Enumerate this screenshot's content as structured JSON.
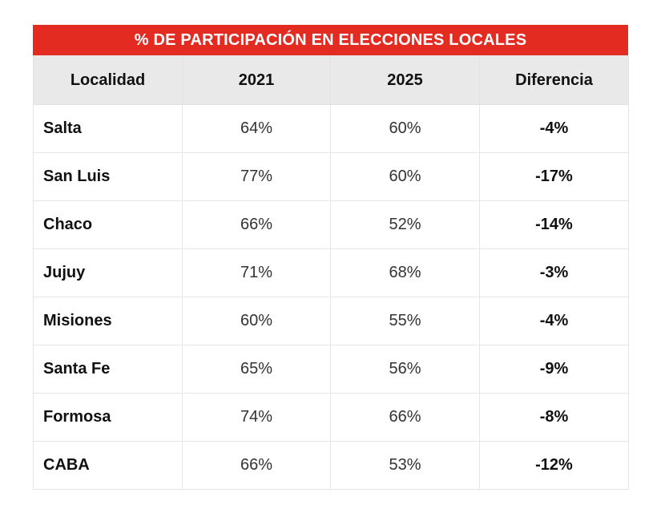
{
  "title": "% DE PARTICIPACIÓN EN ELECCIONES LOCALES",
  "columns": [
    "Localidad",
    "2021",
    "2025",
    "Diferencia"
  ],
  "rows": [
    {
      "localidad": "Salta",
      "y2021": "64%",
      "y2025": "60%",
      "diferencia": "-4%"
    },
    {
      "localidad": "San Luis",
      "y2021": "77%",
      "y2025": "60%",
      "diferencia": "-17%"
    },
    {
      "localidad": "Chaco",
      "y2021": "66%",
      "y2025": "52%",
      "diferencia": "-14%"
    },
    {
      "localidad": "Jujuy",
      "y2021": "71%",
      "y2025": "68%",
      "diferencia": "-3%"
    },
    {
      "localidad": "Misiones",
      "y2021": "60%",
      "y2025": "55%",
      "diferencia": "-4%"
    },
    {
      "localidad": "Santa Fe",
      "y2021": "65%",
      "y2025": "56%",
      "diferencia": "-9%"
    },
    {
      "localidad": "Formosa",
      "y2021": "74%",
      "y2025": "66%",
      "diferencia": "-8%"
    },
    {
      "localidad": "CABA",
      "y2021": "66%",
      "y2025": "53%",
      "diferencia": "-12%"
    }
  ],
  "colors": {
    "title_bg": "#e32b22",
    "header_bg": "#e9e9e9"
  }
}
